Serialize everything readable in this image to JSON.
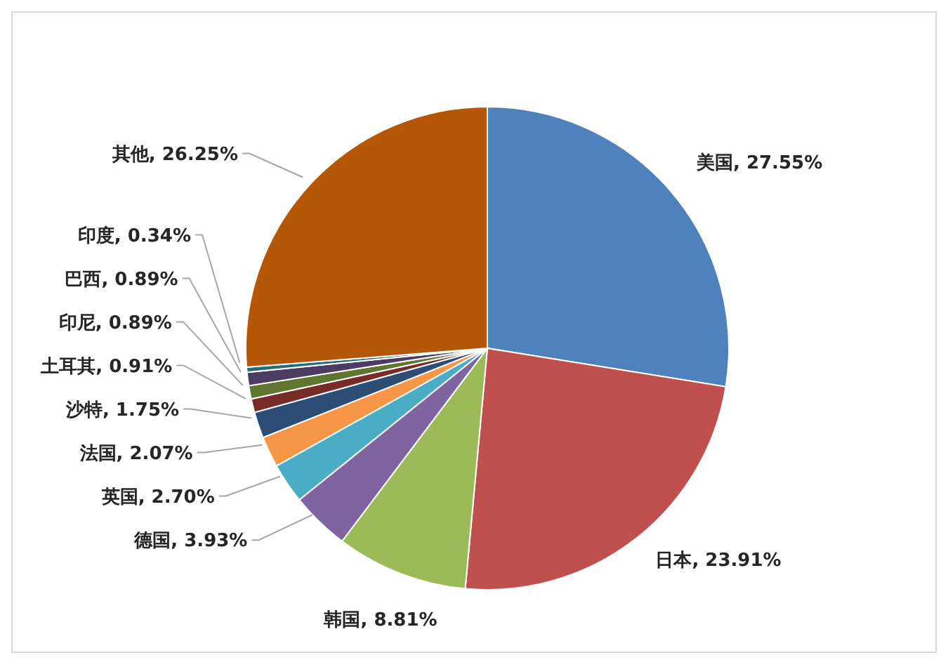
{
  "chart_data": {
    "type": "pie",
    "categories": [
      "美国",
      "日本",
      "韩国",
      "德国",
      "英国",
      "法国",
      "沙特",
      "土耳其",
      "印尼",
      "巴西",
      "印度",
      "其他"
    ],
    "values": [
      27.55,
      23.91,
      8.81,
      3.93,
      2.7,
      2.07,
      1.75,
      0.91,
      0.89,
      0.89,
      0.34,
      26.25
    ],
    "colors": [
      "#4f81bd",
      "#c0504d",
      "#9bbb59",
      "#8064a2",
      "#4bacc6",
      "#f79646",
      "#2c4d75",
      "#772c2a",
      "#5f7530",
      "#4d3b62",
      "#276a7c",
      "#b65708"
    ],
    "value_labels": [
      "27.55%",
      "23.91%",
      "8.81%",
      "3.93%",
      "2.70%",
      "2.07%",
      "1.75%",
      "0.91%",
      "0.89%",
      "0.89%",
      "0.34%",
      "26.25%"
    ],
    "legend": false
  }
}
